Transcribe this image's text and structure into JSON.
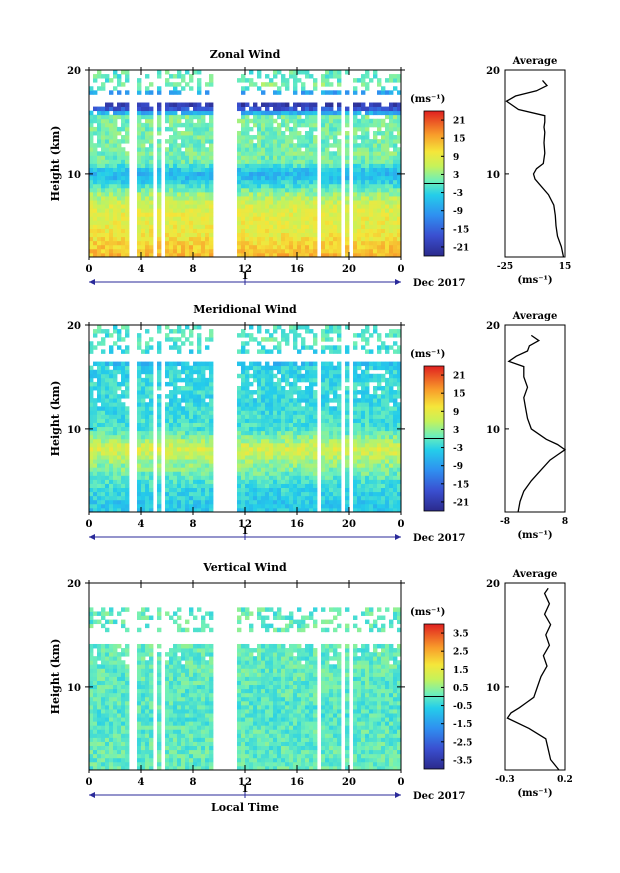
{
  "chart_data": [
    {
      "type": "heatmap",
      "title": "Zonal Wind",
      "ylabel": "Height (km)",
      "xlabel": "",
      "unit_label": "(ms⁻¹)",
      "x_ticks": [
        "0",
        "4",
        "8",
        "12",
        "16",
        "20",
        "0"
      ],
      "x_range": [
        0,
        24
      ],
      "day_label": "1",
      "month_label": "Dec 2017",
      "y_ticks": [
        "10",
        "20"
      ],
      "y_range": [
        2,
        20
      ],
      "colorbar_ticks": [
        "21",
        "15",
        "9",
        "3",
        "-3",
        "-9",
        "-15",
        "-21"
      ],
      "colorbar_range": [
        -24,
        24
      ],
      "profile_title": "Average",
      "profile_xlabel": "(ms⁻¹)",
      "profile_x_ticks": [
        "-25",
        "15"
      ],
      "profile_x_range": [
        -25,
        15
      ],
      "profile_heights": [
        2.0,
        3.0,
        4.0,
        5.0,
        6.0,
        7.0,
        8.0,
        9.0,
        9.5,
        10.0,
        10.5,
        11.0,
        12.0,
        13.0,
        14.0,
        14.5,
        15.0,
        15.6,
        16.2,
        17.0,
        17.5,
        18.0,
        18.5,
        19.0
      ],
      "profile_values": [
        14,
        12.5,
        10,
        9,
        8.5,
        7.5,
        4,
        -2,
        -5,
        -6,
        -4,
        0.5,
        1.5,
        1,
        1.5,
        1,
        1.5,
        1.5,
        -16,
        -24,
        -18,
        -4,
        3,
        0
      ]
    },
    {
      "type": "heatmap",
      "title": "Meridional Wind",
      "ylabel": "Height (km)",
      "xlabel": "",
      "unit_label": "(ms⁻¹)",
      "x_ticks": [
        "0",
        "4",
        "8",
        "12",
        "16",
        "20",
        "0"
      ],
      "x_range": [
        0,
        24
      ],
      "day_label": "1",
      "month_label": "Dec 2017",
      "y_ticks": [
        "10",
        "20"
      ],
      "y_range": [
        2,
        20
      ],
      "colorbar_ticks": [
        "21",
        "15",
        "9",
        "3",
        "-3",
        "-9",
        "-15",
        "-21"
      ],
      "colorbar_range": [
        -24,
        24
      ],
      "profile_title": "Average",
      "profile_xlabel": "(ms⁻¹)",
      "profile_x_ticks": [
        "-8",
        "8"
      ],
      "profile_x_range": [
        -8,
        8
      ],
      "profile_heights": [
        2.0,
        3.0,
        4.0,
        5.0,
        6.0,
        7.0,
        7.5,
        8.0,
        8.5,
        9.0,
        10.0,
        11.0,
        12.0,
        13.0,
        14.0,
        15.0,
        16.0,
        16.5,
        17.0,
        17.5,
        18.0,
        18.5,
        19.0
      ],
      "profile_values": [
        -4.5,
        -4,
        -3,
        -1,
        1.5,
        4,
        6,
        8,
        6,
        3,
        -1,
        -2,
        -2.5,
        -3,
        -2,
        -3,
        -3,
        -7,
        -5,
        -2,
        -1.5,
        1,
        -1
      ]
    },
    {
      "type": "heatmap",
      "title": "Vertical Wind",
      "ylabel": "Height (km)",
      "xlabel": "Local Time",
      "unit_label": "(ms⁻¹)",
      "x_ticks": [
        "0",
        "4",
        "8",
        "12",
        "16",
        "20",
        "0"
      ],
      "x_range": [
        0,
        24
      ],
      "day_label": "1",
      "month_label": "Dec 2017",
      "y_ticks": [
        "10",
        "20"
      ],
      "y_range": [
        2,
        20
      ],
      "colorbar_ticks": [
        "3.5",
        "2.5",
        "1.5",
        "0.5",
        "-0.5",
        "-1.5",
        "-2.5",
        "-3.5"
      ],
      "colorbar_range": [
        -4,
        4
      ],
      "profile_title": "Average",
      "profile_xlabel": "(ms⁻¹)",
      "profile_x_ticks": [
        "-0.3",
        "0.2"
      ],
      "profile_x_range": [
        -0.3,
        0.2
      ],
      "profile_heights": [
        2.0,
        3.0,
        4.0,
        5.0,
        6.0,
        7.0,
        7.5,
        8.0,
        8.5,
        9.0,
        10.0,
        11.0,
        12.0,
        13.0,
        14.0,
        15.0,
        16.0,
        17.0,
        18.0,
        19.0,
        19.5
      ],
      "profile_values": [
        0.15,
        0.08,
        0.06,
        0.04,
        -0.1,
        -0.28,
        -0.25,
        -0.18,
        -0.12,
        -0.06,
        -0.03,
        0.0,
        0.05,
        0.02,
        0.07,
        0.04,
        0.08,
        0.03,
        0.07,
        0.03,
        0.06
      ]
    }
  ]
}
